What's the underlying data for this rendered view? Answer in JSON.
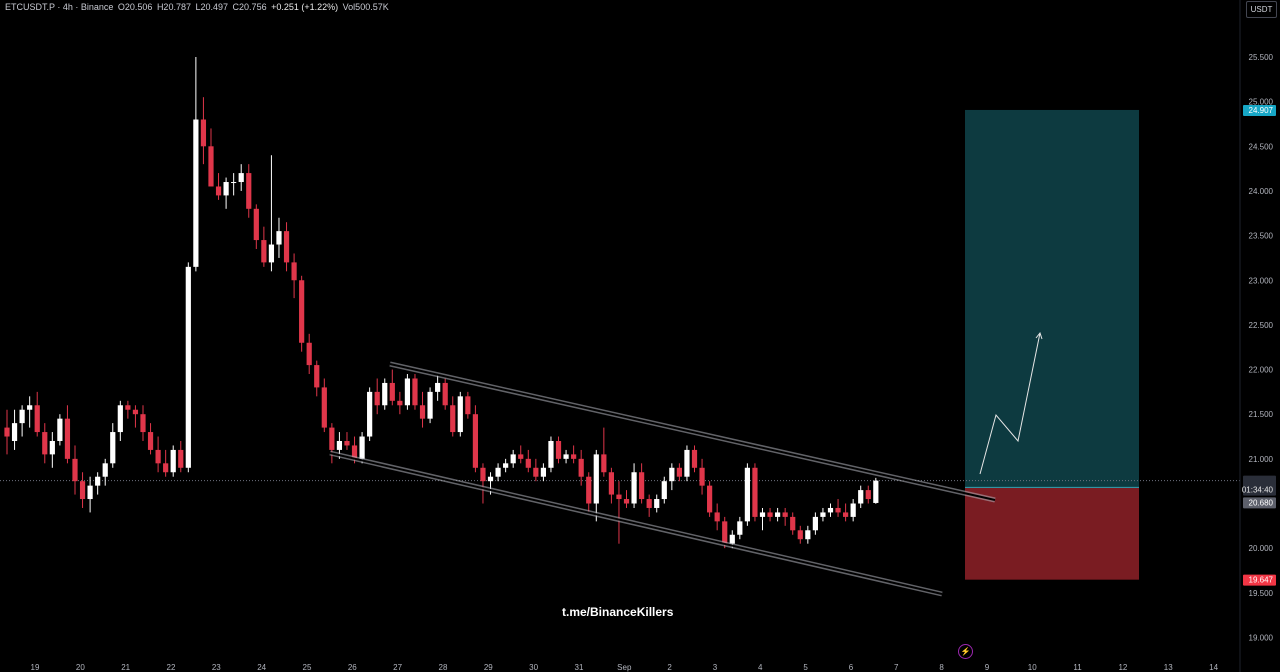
{
  "header": {
    "symbol": "ETCUSDT.P · 4h · Binance",
    "open": "O20.506",
    "high": "H20.787",
    "low": "L20.497",
    "close": "C20.756",
    "change": "+0.251 (+1.22%)",
    "volume": "Vol500.57K"
  },
  "unit_label": "USDT",
  "watermark": "t.me/BinanceKillers",
  "colors": {
    "background": "#000000",
    "up_candle": "#ffffff",
    "down_candle": "#e0364a",
    "target_zone": "#0d3a40",
    "stop_zone": "#7a1c22",
    "target_badge": "#17a7c6",
    "stop_badge": "#f23645",
    "channel": "#b2b5be"
  },
  "icons": {
    "replay": "lightning-icon"
  },
  "chart_data": {
    "type": "candlestick",
    "title": "",
    "xlabel": "",
    "ylabel": "",
    "ylim": [
      18.9,
      25.9
    ],
    "grid": false,
    "x_ticks": [
      "19",
      "20",
      "21",
      "22",
      "23",
      "24",
      "25",
      "26",
      "27",
      "28",
      "29",
      "30",
      "31",
      "Sep",
      "2",
      "3",
      "4",
      "5",
      "6",
      "7",
      "8",
      "9",
      "10",
      "11",
      "12",
      "13",
      "14"
    ],
    "y_ticks": [
      "25.500",
      "25.000",
      "24.500",
      "24.000",
      "23.500",
      "23.000",
      "22.500",
      "22.000",
      "21.500",
      "21.000",
      "20.500",
      "20.000",
      "19.500",
      "19.000"
    ],
    "price_labels": {
      "target": "24.907",
      "last_price": "20.756",
      "countdown": "01:34:40",
      "entry": "20.680",
      "stop": "19.647"
    },
    "levels": {
      "target": 24.907,
      "last": 20.756,
      "entry": 20.68,
      "stop": 19.647
    },
    "candles": [
      [
        21.35,
        21.55,
        21.05,
        21.25
      ],
      [
        21.2,
        21.55,
        21.1,
        21.4
      ],
      [
        21.4,
        21.6,
        21.25,
        21.55
      ],
      [
        21.55,
        21.7,
        21.35,
        21.6
      ],
      [
        21.6,
        21.75,
        21.25,
        21.3
      ],
      [
        21.3,
        21.4,
        20.95,
        21.05
      ],
      [
        21.05,
        21.3,
        20.9,
        21.2
      ],
      [
        21.2,
        21.5,
        21.15,
        21.45
      ],
      [
        21.45,
        21.6,
        20.95,
        21.0
      ],
      [
        21.0,
        21.15,
        20.6,
        20.75
      ],
      [
        20.75,
        20.85,
        20.45,
        20.55
      ],
      [
        20.55,
        20.8,
        20.4,
        20.7
      ],
      [
        20.7,
        20.85,
        20.6,
        20.8
      ],
      [
        20.8,
        21.0,
        20.7,
        20.95
      ],
      [
        20.95,
        21.4,
        20.9,
        21.3
      ],
      [
        21.3,
        21.65,
        21.2,
        21.6
      ],
      [
        21.6,
        21.65,
        21.45,
        21.55
      ],
      [
        21.55,
        21.6,
        21.35,
        21.5
      ],
      [
        21.5,
        21.6,
        21.2,
        21.3
      ],
      [
        21.3,
        21.4,
        21.05,
        21.1
      ],
      [
        21.1,
        21.25,
        20.85,
        20.95
      ],
      [
        20.95,
        21.1,
        20.8,
        20.85
      ],
      [
        20.85,
        21.15,
        20.8,
        21.1
      ],
      [
        21.1,
        21.2,
        20.85,
        20.9
      ],
      [
        20.9,
        23.2,
        20.85,
        23.15
      ],
      [
        23.15,
        25.5,
        23.1,
        24.8
      ],
      [
        24.8,
        25.05,
        24.3,
        24.5
      ],
      [
        24.5,
        24.7,
        24.05,
        24.05
      ],
      [
        24.05,
        24.2,
        23.9,
        23.95
      ],
      [
        23.95,
        24.15,
        23.8,
        24.1
      ],
      [
        24.1,
        24.2,
        23.95,
        24.1
      ],
      [
        24.1,
        24.3,
        24.0,
        24.2
      ],
      [
        24.2,
        24.3,
        23.7,
        23.8
      ],
      [
        23.8,
        23.85,
        23.35,
        23.45
      ],
      [
        23.45,
        23.6,
        23.15,
        23.2
      ],
      [
        23.2,
        24.4,
        23.1,
        23.4
      ],
      [
        23.4,
        23.7,
        23.25,
        23.55
      ],
      [
        23.55,
        23.65,
        23.1,
        23.2
      ],
      [
        23.2,
        23.3,
        22.8,
        23.0
      ],
      [
        23.0,
        23.05,
        22.2,
        22.3
      ],
      [
        22.3,
        22.4,
        21.95,
        22.05
      ],
      [
        22.05,
        22.1,
        21.7,
        21.8
      ],
      [
        21.8,
        21.9,
        21.3,
        21.35
      ],
      [
        21.35,
        21.4,
        20.95,
        21.1
      ],
      [
        21.1,
        21.3,
        21.0,
        21.2
      ],
      [
        21.2,
        21.3,
        21.1,
        21.15
      ],
      [
        21.15,
        21.25,
        20.95,
        21.0
      ],
      [
        21.0,
        21.3,
        20.95,
        21.25
      ],
      [
        21.25,
        21.8,
        21.2,
        21.75
      ],
      [
        21.75,
        21.9,
        21.5,
        21.6
      ],
      [
        21.6,
        21.9,
        21.55,
        21.85
      ],
      [
        21.85,
        22.0,
        21.6,
        21.65
      ],
      [
        21.65,
        21.75,
        21.5,
        21.6
      ],
      [
        21.6,
        21.95,
        21.55,
        21.9
      ],
      [
        21.9,
        21.95,
        21.55,
        21.6
      ],
      [
        21.6,
        21.75,
        21.35,
        21.45
      ],
      [
        21.45,
        21.8,
        21.4,
        21.75
      ],
      [
        21.75,
        21.95,
        21.65,
        21.85
      ],
      [
        21.85,
        21.9,
        21.55,
        21.6
      ],
      [
        21.6,
        21.7,
        21.25,
        21.3
      ],
      [
        21.3,
        21.75,
        21.25,
        21.7
      ],
      [
        21.7,
        21.75,
        21.45,
        21.5
      ],
      [
        21.5,
        21.6,
        20.85,
        20.9
      ],
      [
        20.9,
        20.95,
        20.5,
        20.75
      ],
      [
        20.75,
        20.85,
        20.6,
        20.8
      ],
      [
        20.8,
        20.95,
        20.75,
        20.9
      ],
      [
        20.9,
        21.0,
        20.85,
        20.95
      ],
      [
        20.95,
        21.1,
        20.9,
        21.05
      ],
      [
        21.05,
        21.15,
        20.95,
        21.0
      ],
      [
        21.0,
        21.1,
        20.85,
        20.9
      ],
      [
        20.9,
        21.0,
        20.75,
        20.8
      ],
      [
        20.8,
        20.95,
        20.75,
        20.9
      ],
      [
        20.9,
        21.25,
        20.85,
        21.2
      ],
      [
        21.2,
        21.25,
        20.95,
        21.0
      ],
      [
        21.0,
        21.1,
        20.95,
        21.05
      ],
      [
        21.05,
        21.15,
        20.95,
        21.0
      ],
      [
        21.0,
        21.1,
        20.7,
        20.8
      ],
      [
        20.8,
        20.85,
        20.4,
        20.5
      ],
      [
        20.5,
        21.1,
        20.3,
        21.05
      ],
      [
        21.05,
        21.35,
        20.8,
        20.85
      ],
      [
        20.85,
        20.9,
        20.5,
        20.6
      ],
      [
        20.6,
        20.75,
        20.05,
        20.55
      ],
      [
        20.55,
        20.65,
        20.45,
        20.5
      ],
      [
        20.5,
        20.95,
        20.45,
        20.85
      ],
      [
        20.85,
        20.95,
        20.5,
        20.55
      ],
      [
        20.55,
        20.6,
        20.35,
        20.45
      ],
      [
        20.45,
        20.6,
        20.4,
        20.55
      ],
      [
        20.55,
        20.8,
        20.5,
        20.75
      ],
      [
        20.75,
        20.95,
        20.65,
        20.9
      ],
      [
        20.9,
        20.95,
        20.75,
        20.8
      ],
      [
        20.8,
        21.15,
        20.75,
        21.1
      ],
      [
        21.1,
        21.15,
        20.85,
        20.9
      ],
      [
        20.9,
        21.0,
        20.6,
        20.7
      ],
      [
        20.7,
        20.75,
        20.35,
        20.4
      ],
      [
        20.4,
        20.5,
        20.2,
        20.3
      ],
      [
        20.3,
        20.35,
        20.0,
        20.05
      ],
      [
        20.05,
        20.2,
        20.0,
        20.15
      ],
      [
        20.15,
        20.35,
        20.1,
        20.3
      ],
      [
        20.3,
        20.95,
        20.25,
        20.9
      ],
      [
        20.9,
        20.95,
        20.3,
        20.35
      ],
      [
        20.35,
        20.45,
        20.2,
        20.4
      ],
      [
        20.4,
        20.45,
        20.3,
        20.35
      ],
      [
        20.35,
        20.45,
        20.3,
        20.4
      ],
      [
        20.4,
        20.45,
        20.25,
        20.35
      ],
      [
        20.35,
        20.4,
        20.15,
        20.2
      ],
      [
        20.2,
        20.25,
        20.05,
        20.1
      ],
      [
        20.1,
        20.25,
        20.05,
        20.2
      ],
      [
        20.2,
        20.4,
        20.15,
        20.35
      ],
      [
        20.35,
        20.45,
        20.3,
        20.4
      ],
      [
        20.4,
        20.5,
        20.35,
        20.45
      ],
      [
        20.45,
        20.55,
        20.35,
        20.4
      ],
      [
        20.4,
        20.5,
        20.3,
        20.35
      ],
      [
        20.35,
        20.55,
        20.3,
        20.5
      ],
      [
        20.5,
        20.7,
        20.45,
        20.65
      ],
      [
        20.65,
        20.7,
        20.5,
        20.55
      ],
      [
        20.506,
        20.787,
        20.497,
        20.756
      ]
    ]
  }
}
